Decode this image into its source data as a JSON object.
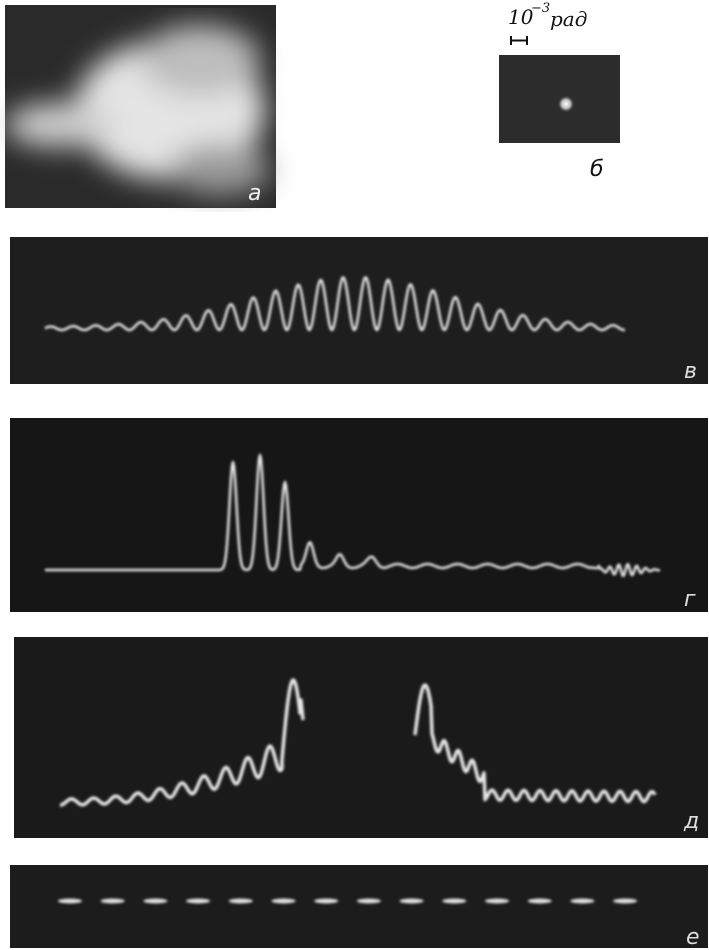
{
  "scale_label": {
    "base": "10",
    "exponent": "−3",
    "unit": "рад"
  },
  "panels": [
    {
      "label": "а"
    },
    {
      "label": "б"
    },
    {
      "label": "в"
    },
    {
      "label": "г"
    },
    {
      "label": "д"
    },
    {
      "label": "е"
    }
  ]
}
